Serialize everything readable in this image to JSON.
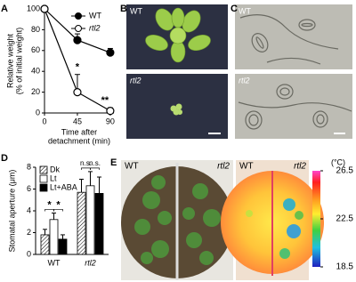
{
  "panel_labels": [
    "A",
    "B",
    "C",
    "D",
    "E"
  ],
  "chart_data": [
    {
      "type": "line",
      "ylabel": [
        "Relative weight",
        "(% of initial weight)"
      ],
      "xlabel": [
        "Time after",
        "detachment (min)"
      ],
      "x": [
        0,
        45,
        90
      ],
      "xlim": [
        0,
        95
      ],
      "xticks": [
        0,
        45,
        90
      ],
      "ylim": [
        0,
        100
      ],
      "yticks": [
        0,
        20,
        40,
        60,
        80,
        100
      ],
      "legend": "upper right",
      "annotations": [
        "*",
        "**"
      ],
      "series": [
        {
          "name": "WT",
          "color": "#000000",
          "filled": true,
          "values": [
            100,
            70,
            58
          ],
          "errors": [
            null,
            6,
            4
          ]
        },
        {
          "name": "rtl2",
          "color": "#000000",
          "filled": false,
          "values": [
            100,
            20,
            2
          ],
          "errors": [
            null,
            17,
            3
          ]
        }
      ]
    },
    {
      "type": "bar",
      "ylabel": "Stomatal aperture (μm)",
      "categories": [
        "WT",
        "rtl2"
      ],
      "ylim": [
        0,
        8
      ],
      "yticks": [
        0,
        2,
        4,
        6,
        8
      ],
      "legend": "upper left",
      "annotations": [
        "*",
        "*",
        "n.s.",
        "n.s."
      ],
      "series": [
        {
          "name": "Dk",
          "color": "#ffffff",
          "hatch": true,
          "values": [
            1.8,
            5.7
          ],
          "errors": [
            0.5,
            1.2
          ]
        },
        {
          "name": "Lt",
          "color": "#ffffff",
          "hatch": false,
          "values": [
            3.2,
            6.3
          ],
          "errors": [
            0.6,
            1.3
          ]
        },
        {
          "name": "Lt+ABA",
          "color": "#000000",
          "hatch": false,
          "values": [
            1.4,
            5.6
          ],
          "errors": [
            0.4,
            1.5
          ]
        }
      ]
    }
  ],
  "panel_B": {
    "labels": [
      "WT",
      "rtl2"
    ]
  },
  "panel_C": {
    "labels": [
      "WT",
      "rtl2"
    ]
  },
  "panel_E": {
    "photo_labels": [
      "WT",
      "rtl2"
    ],
    "thermal_labels": [
      "WT",
      "rtl2"
    ],
    "colorbar": {
      "unit": "(°C)",
      "lim": [
        18.5,
        26.5
      ],
      "ticks": [
        26.5,
        22.5,
        18.5
      ]
    }
  }
}
